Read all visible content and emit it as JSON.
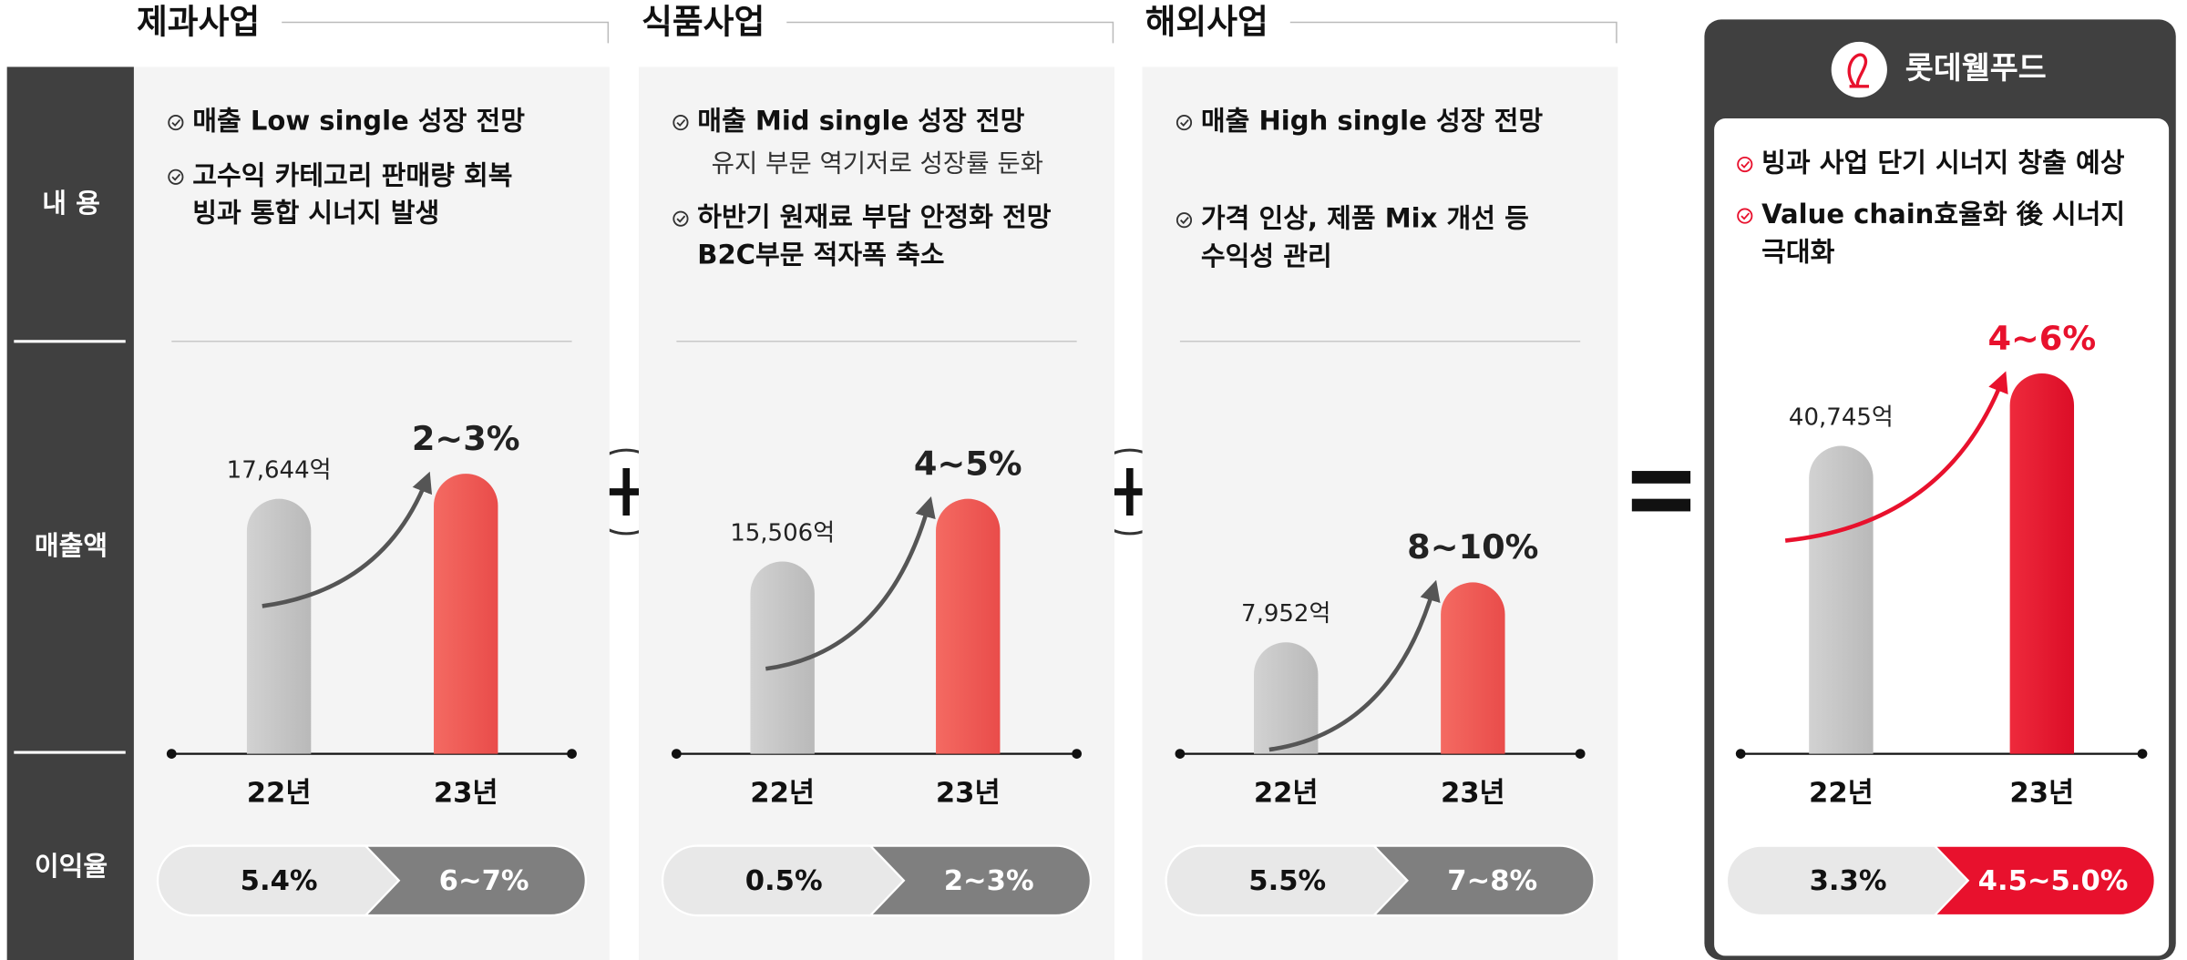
{
  "row_labels": [
    "내 용",
    "매출액",
    "이익율"
  ],
  "segments": [
    {
      "title": "제과사업",
      "bullets": [
        {
          "lines": [
            "매출 Low single 성장 전망"
          ]
        },
        {
          "lines": [
            "고수익 카테고리 판매량 회복",
            "빙과 통합 시너지 발생"
          ]
        }
      ],
      "bars": [
        {
          "label": "22년",
          "value_label": "17,644억"
        },
        {
          "label": "23년",
          "value_label": "2~3%"
        }
      ],
      "margins": [
        "5.4%",
        "6~7%"
      ]
    },
    {
      "title": "식품사업",
      "bullets": [
        {
          "lines": [
            "매출 Mid single 성장 전망"
          ],
          "note": "유지 부문 역기저로 성장률 둔화"
        },
        {
          "lines": [
            "하반기 원재료 부담 안정화 전망",
            "B2C부문 적자폭 축소"
          ]
        }
      ],
      "bars": [
        {
          "label": "22년",
          "value_label": "15,506억"
        },
        {
          "label": "23년",
          "value_label": "4~5%"
        }
      ],
      "margins": [
        "0.5%",
        "2~3%"
      ]
    },
    {
      "title": "해외사업",
      "bullets": [
        {
          "lines": [
            "매출 High single 성장 전망"
          ]
        },
        {
          "lines": [
            "가격 인상, 제품 Mix 개선 등",
            "수익성 관리"
          ]
        }
      ],
      "bars": [
        {
          "label": "22년",
          "value_label": "7,952억"
        },
        {
          "label": "23년",
          "value_label": "8~10%"
        }
      ],
      "margins": [
        "5.5%",
        "7~8%"
      ]
    },
    {
      "title": "롯데웰푸드",
      "bullets": [
        {
          "lines": [
            "빙과 사업 단기 시너지 창출 예상"
          ]
        },
        {
          "lines": [
            "Value chain효율화 後 시너지",
            "극대화"
          ]
        }
      ],
      "bars": [
        {
          "label": "22년",
          "value_label": "40,745억"
        },
        {
          "label": "23년",
          "value_label": "4~6%"
        }
      ],
      "margins": [
        "3.3%",
        "4.5~5.0%"
      ]
    }
  ]
}
